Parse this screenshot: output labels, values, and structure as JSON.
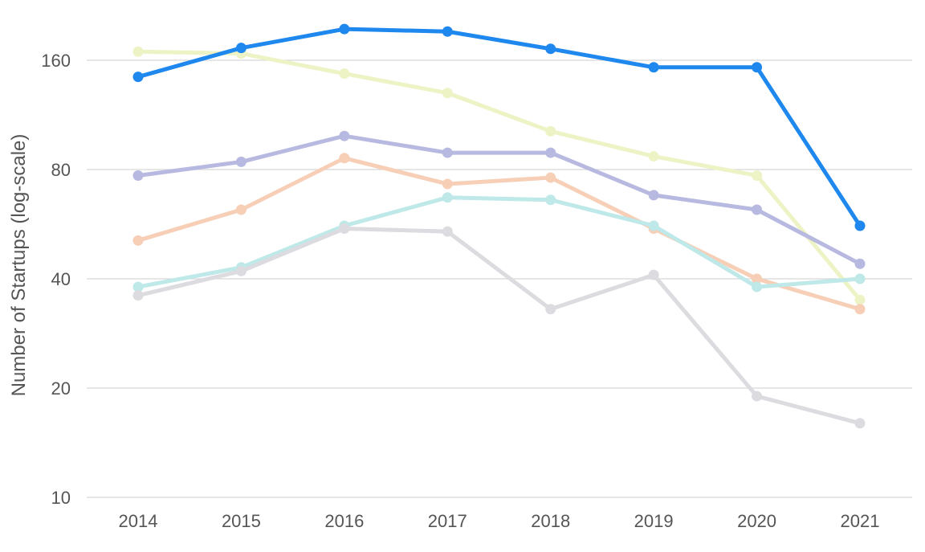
{
  "chart_data": {
    "type": "line",
    "title": "",
    "xlabel": "",
    "ylabel": "Number of  Startups (log-scale)",
    "yscale": "log2",
    "ylim": [
      10,
      200
    ],
    "yticks": [
      10,
      20,
      40,
      80,
      160
    ],
    "grid": true,
    "legend": "none",
    "x": [
      "2014",
      "2015",
      "2016",
      "2017",
      "2018",
      "2019",
      "2020",
      "2021"
    ],
    "series": [
      {
        "color": "#eef3c6",
        "values": [
          169,
          167,
          147,
          130,
          102,
          87,
          77,
          35
        ]
      },
      {
        "color": "#b8b9e0",
        "values": [
          77,
          84,
          99,
          89,
          89,
          68,
          62,
          44
        ]
      },
      {
        "color": "#f7ceb6",
        "values": [
          51,
          62,
          86,
          73,
          76,
          55,
          40,
          33
        ]
      },
      {
        "color": "#bfe8e8",
        "values": [
          38,
          43,
          56,
          67,
          66,
          56,
          38,
          40
        ]
      },
      {
        "color": "#dcdbe0",
        "values": [
          36,
          42,
          55,
          54,
          33,
          41,
          19,
          16
        ]
      },
      {
        "color": "#1e88ef",
        "values": [
          144,
          173,
          195,
          192,
          172,
          153,
          153,
          56
        ]
      }
    ]
  }
}
